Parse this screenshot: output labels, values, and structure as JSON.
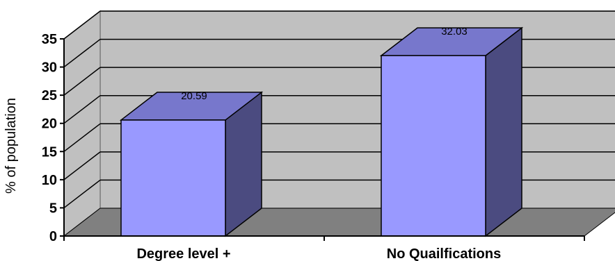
{
  "chart_data": {
    "type": "bar",
    "title": "",
    "xlabel": "",
    "ylabel": "% of population",
    "ylim": [
      0,
      35
    ],
    "yticks": [
      0,
      5,
      10,
      15,
      20,
      25,
      30,
      35
    ],
    "grid": true,
    "categories": [
      "Degree level +",
      "No Quailfications"
    ],
    "values": [
      20.59,
      32.03
    ],
    "data_labels": [
      "20.59",
      "32.03"
    ],
    "colors": {
      "bar_front": "#9999ff",
      "bar_top": "#7777cc",
      "bar_side": "#4b4b80",
      "back_wall": "#c0c0c0",
      "floor": "#808080"
    }
  }
}
